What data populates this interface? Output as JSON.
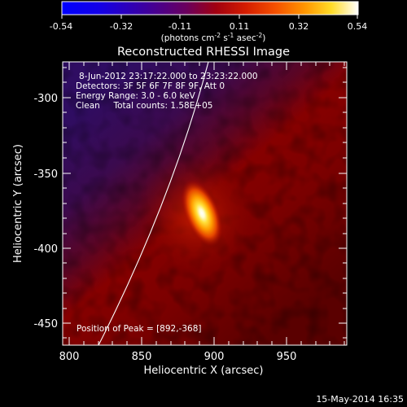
{
  "colorbar": {
    "ticks": [
      "-0.54",
      "-0.32",
      "-0.11",
      "0.11",
      "0.32",
      "0.54"
    ],
    "units_main": "(photons cm",
    "units_exp1": "-2",
    "units_mid1": " s",
    "units_exp2": "-1",
    "units_mid2": " asec",
    "units_exp3": "-2",
    "units_end": ")"
  },
  "plot": {
    "title": "Reconstructed RHESSI Image",
    "xlabel": "Heliocentric X (arcsec)",
    "ylabel": "Heliocentric Y (arcsec)",
    "x_ticks": [
      "800",
      "850",
      "900",
      "950"
    ],
    "y_ticks": [
      "-300",
      "-350",
      "-400",
      "-450"
    ],
    "info_lines": [
      "8-Jun-2012 23:17:22.000 to 23:23:22.000",
      "Detectors: 3F 5F 6F 7F 8F 9F, Att 0",
      "Energy Range: 3.0 - 6.0 keV",
      "Clean     Total counts: 1.58E+05"
    ],
    "peak_label": "Position of Peak = [892,-368]"
  },
  "footer": {
    "date": "15-May-2014 16:35"
  },
  "image_data": {
    "type": "heatmap",
    "x_range": [
      783,
      987
    ],
    "y_range": [
      -469,
      -281
    ],
    "peak": [
      892,
      -368
    ],
    "value_range": [
      -0.54,
      0.54
    ]
  }
}
